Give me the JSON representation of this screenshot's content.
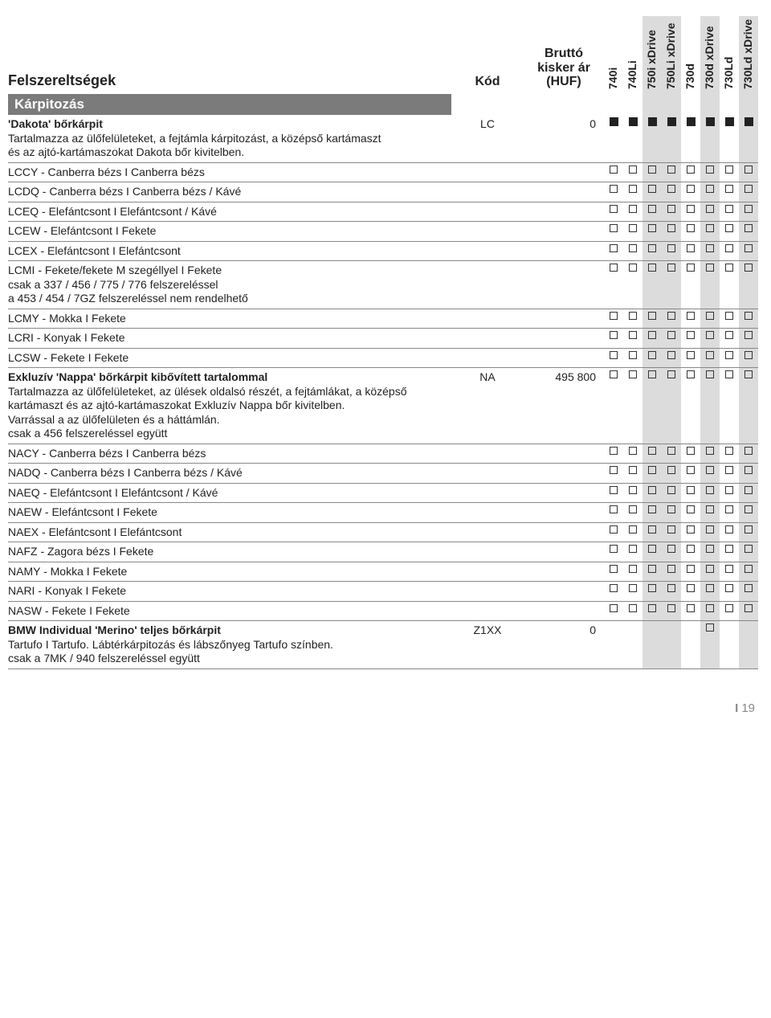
{
  "header": {
    "col_name": "Felszereltségek",
    "col_code": "Kód",
    "col_price": "Bruttó\nkisker ár\n(HUF)",
    "models": [
      "740i",
      "740Li",
      "750i xDrive",
      "750Li xDrive",
      "730d",
      "730d xDrive",
      "730Ld",
      "730Ld xDrive"
    ],
    "shaded_cols": [
      2,
      3,
      5,
      7
    ]
  },
  "section": {
    "title": "Kárpitozás"
  },
  "rows": [
    {
      "name": "'Dakota' bőrkárpit",
      "bold": true,
      "code": "LC",
      "price": "0",
      "marks": [
        "filled",
        "filled",
        "filled",
        "filled",
        "filled",
        "filled",
        "filled",
        "filled"
      ],
      "desc": [
        "Tartalmazza az ülőfelületeket, a fejtámla kárpitozást, a középső kartámaszt",
        "és az ajtó-kartámaszokat Dakota bőr kivitelben."
      ]
    },
    {
      "name": "LCCY - Canberra bézs I Canberra bézs",
      "marks": [
        "open",
        "open",
        "open",
        "open",
        "open",
        "open",
        "open",
        "open"
      ]
    },
    {
      "name": "LCDQ - Canberra bézs I Canberra bézs / Kávé",
      "marks": [
        "open",
        "open",
        "open",
        "open",
        "open",
        "open",
        "open",
        "open"
      ]
    },
    {
      "name": "LCEQ - Elefántcsont I Elefántcsont / Kávé",
      "marks": [
        "open",
        "open",
        "open",
        "open",
        "open",
        "open",
        "open",
        "open"
      ]
    },
    {
      "name": "LCEW - Elefántcsont I Fekete",
      "marks": [
        "open",
        "open",
        "open",
        "open",
        "open",
        "open",
        "open",
        "open"
      ]
    },
    {
      "name": "LCEX - Elefántcsont I Elefántcsont",
      "marks": [
        "open",
        "open",
        "open",
        "open",
        "open",
        "open",
        "open",
        "open"
      ]
    },
    {
      "name": "LCMI - Fekete/fekete M szegéllyel I Fekete",
      "marks": [
        "open",
        "open",
        "open",
        "open",
        "open",
        "open",
        "open",
        "open"
      ],
      "desc": [
        "csak a 337 / 456 / 775 / 776 felszereléssel",
        "a 453 / 454 / 7GZ felszereléssel nem rendelhető"
      ]
    },
    {
      "name": "LCMY - Mokka I Fekete",
      "marks": [
        "open",
        "open",
        "open",
        "open",
        "open",
        "open",
        "open",
        "open"
      ]
    },
    {
      "name": "LCRI - Konyak I Fekete",
      "marks": [
        "open",
        "open",
        "open",
        "open",
        "open",
        "open",
        "open",
        "open"
      ]
    },
    {
      "name": "LCSW - Fekete I Fekete",
      "marks": [
        "open",
        "open",
        "open",
        "open",
        "open",
        "open",
        "open",
        "open"
      ]
    },
    {
      "name": "Exkluzív 'Nappa' bőrkárpit kibővített tartalommal",
      "bold": true,
      "code": "NA",
      "price": "495 800",
      "marks": [
        "open",
        "open",
        "open",
        "open",
        "open",
        "open",
        "open",
        "open"
      ],
      "desc": [
        "Tartalmazza az ülőfelületeket, az ülések oldalsó részét, a fejtámlákat, a középső",
        "kartámaszt és az ajtó-kartámaszokat Exkluzív Nappa bőr kivitelben.",
        "Varrással a az ülőfelületen és a háttámlán.",
        "csak a 456 felszereléssel együtt"
      ]
    },
    {
      "name": "NACY - Canberra bézs I Canberra bézs",
      "marks": [
        "open",
        "open",
        "open",
        "open",
        "open",
        "open",
        "open",
        "open"
      ]
    },
    {
      "name": "NADQ - Canberra bézs I Canberra bézs / Kávé",
      "marks": [
        "open",
        "open",
        "open",
        "open",
        "open",
        "open",
        "open",
        "open"
      ]
    },
    {
      "name": "NAEQ - Elefántcsont I Elefántcsont / Kávé",
      "marks": [
        "open",
        "open",
        "open",
        "open",
        "open",
        "open",
        "open",
        "open"
      ]
    },
    {
      "name": "NAEW - Elefántcsont I Fekete",
      "marks": [
        "open",
        "open",
        "open",
        "open",
        "open",
        "open",
        "open",
        "open"
      ]
    },
    {
      "name": "NAEX - Elefántcsont I Elefántcsont",
      "marks": [
        "open",
        "open",
        "open",
        "open",
        "open",
        "open",
        "open",
        "open"
      ]
    },
    {
      "name": "NAFZ - Zagora bézs I Fekete",
      "marks": [
        "open",
        "open",
        "open",
        "open",
        "open",
        "open",
        "open",
        "open"
      ]
    },
    {
      "name": "NAMY - Mokka I Fekete",
      "marks": [
        "open",
        "open",
        "open",
        "open",
        "open",
        "open",
        "open",
        "open"
      ]
    },
    {
      "name": "NARI - Konyak I Fekete",
      "marks": [
        "open",
        "open",
        "open",
        "open",
        "open",
        "open",
        "open",
        "open"
      ]
    },
    {
      "name": "NASW - Fekete I Fekete",
      "marks": [
        "open",
        "open",
        "open",
        "open",
        "open",
        "open",
        "open",
        "open"
      ]
    },
    {
      "name": "BMW Individual 'Merino' teljes bőrkárpit",
      "bold": true,
      "code": "Z1XX",
      "price": "0",
      "marks": [
        "",
        "",
        "",
        "",
        "",
        "open",
        "",
        ""
      ],
      "desc": [
        "Tartufo I Tartufo. Lábtérkárpitozás és lábszőnyeg Tartufo színben.",
        "csak a 7MK / 940 felszereléssel együtt"
      ]
    }
  ],
  "page": {
    "number": "19"
  },
  "colors": {
    "shade": "#dcdcdc",
    "section_bg": "#7b7b7b",
    "text": "#222222",
    "border": "#888888"
  }
}
